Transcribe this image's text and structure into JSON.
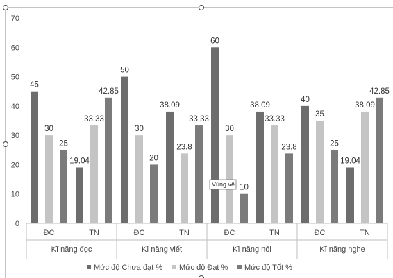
{
  "chart_data": {
    "type": "bar",
    "groups": [
      "Kĩ năng đọc",
      "Kĩ năng viết",
      "Kĩ năng nói",
      "Kĩ năng nghe"
    ],
    "subcategories": [
      "ĐC",
      "TN"
    ],
    "series": [
      {
        "name": "Mức độ Chưa đạt %",
        "color": "#6d6d6d",
        "values": [
          [
            45,
            19.04
          ],
          [
            50,
            38.09
          ],
          [
            60,
            38.09
          ],
          [
            40,
            19.04
          ]
        ],
        "labels": [
          [
            "45",
            "19.04"
          ],
          [
            "50",
            "38.09"
          ],
          [
            "60",
            "38.09"
          ],
          [
            "40",
            "19.04"
          ]
        ]
      },
      {
        "name": "Mức độ Đạt %",
        "color": "#c4c4c4",
        "values": [
          [
            30,
            33.33
          ],
          [
            30,
            23.8
          ],
          [
            30,
            33.33
          ],
          [
            35,
            38.09
          ]
        ],
        "labels": [
          [
            "30",
            "33.33"
          ],
          [
            "30",
            "23.8"
          ],
          [
            "30",
            "33.33"
          ],
          [
            "35",
            "38.09"
          ]
        ]
      },
      {
        "name": "Mức độ Tốt %",
        "color": "#7b7b7b",
        "values": [
          [
            25,
            42.85
          ],
          [
            20,
            33.33
          ],
          [
            10,
            23.8
          ],
          [
            25,
            42.85
          ]
        ],
        "labels": [
          [
            "25",
            "42.85"
          ],
          [
            "20",
            "33.33"
          ],
          [
            "10",
            "23.8"
          ],
          [
            "25",
            "42.85"
          ]
        ]
      }
    ],
    "yticks": [
      "0",
      "10",
      "20",
      "30",
      "40",
      "50",
      "60",
      "70"
    ],
    "ylim": [
      0,
      70
    ],
    "grid": false,
    "legend_position": "bottom"
  },
  "tooltip": {
    "text": "Vùng vẽ"
  }
}
